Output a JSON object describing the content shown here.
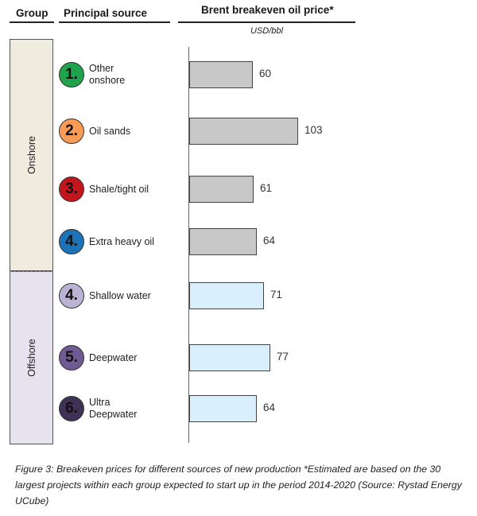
{
  "header": {
    "group": "Group",
    "source": "Principal source",
    "price": "Brent breakeven oil price*"
  },
  "chart_data": {
    "type": "bar",
    "orientation": "horizontal",
    "unit": "USD/bbl",
    "categories": [
      "Other onshore",
      "Oil sands",
      "Shale/tight oil",
      "Extra heavy oil",
      "Shallow water",
      "Deepwater",
      "Ultra Deepwater"
    ],
    "values": [
      60,
      103,
      61,
      64,
      71,
      77,
      64
    ],
    "groups": [
      {
        "name": "Onshore",
        "items": [
          0,
          1,
          2,
          3
        ],
        "fill": "#efebdf",
        "bar_color": "#c8c8c8"
      },
      {
        "name": "Offshore",
        "items": [
          4,
          5,
          6
        ],
        "fill": "#e6e2ee",
        "bar_color": "#daeffc"
      }
    ],
    "markers": [
      {
        "number": "1.",
        "lines": [
          "Other",
          "onshore"
        ],
        "color": "#1fa34d"
      },
      {
        "number": "2.",
        "lines": [
          "Oil sands"
        ],
        "color": "#f79b55"
      },
      {
        "number": "3.",
        "lines": [
          "Shale/tight oil"
        ],
        "color": "#c3161c"
      },
      {
        "number": "4.",
        "lines": [
          "Extra heavy oil"
        ],
        "color": "#1c73b8"
      },
      {
        "number": "4.",
        "lines": [
          "Shallow water"
        ],
        "color": "#bcb2d6"
      },
      {
        "number": "5.",
        "lines": [
          "Deepwater"
        ],
        "color": "#6f5a93"
      },
      {
        "number": "6.",
        "lines": [
          "Ultra",
          "Deepwater"
        ],
        "color": "#3d3256"
      }
    ],
    "grid": false,
    "legend": "none"
  },
  "caption": "Figure 3: Breakeven prices for different sources of new production *Estimated are based on the 30 largest projects within each group expected to start up in the period 2014-2020 (Source: Rystad Energy UCube)"
}
